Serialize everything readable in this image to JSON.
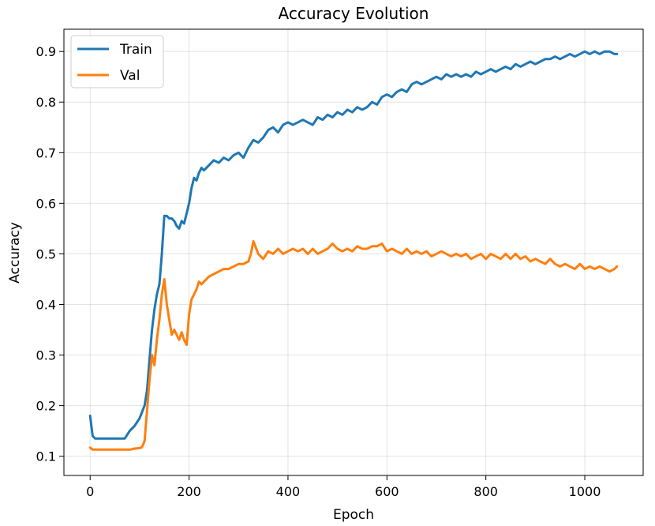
{
  "chart_data": {
    "type": "line",
    "title": "Accuracy Evolution",
    "xlabel": "Epoch",
    "ylabel": "Accuracy",
    "xlim": [
      -53,
      1118
    ],
    "ylim": [
      0.062,
      0.944
    ],
    "xticks": [
      0,
      200,
      400,
      600,
      800,
      1000
    ],
    "yticks": [
      0.1,
      0.2,
      0.3,
      0.4,
      0.5,
      0.6,
      0.7,
      0.8,
      0.9
    ],
    "grid": true,
    "legend_position": "top-left",
    "series": [
      {
        "name": "Train",
        "color": "#1f77b4",
        "x": [
          0,
          5,
          10,
          20,
          30,
          40,
          50,
          60,
          70,
          80,
          90,
          100,
          110,
          115,
          120,
          125,
          130,
          135,
          140,
          145,
          150,
          155,
          160,
          165,
          170,
          175,
          180,
          185,
          190,
          195,
          200,
          205,
          210,
          215,
          220,
          225,
          230,
          240,
          250,
          260,
          270,
          280,
          290,
          300,
          310,
          320,
          330,
          340,
          350,
          360,
          370,
          380,
          390,
          400,
          410,
          420,
          430,
          440,
          450,
          460,
          470,
          480,
          490,
          500,
          510,
          520,
          530,
          540,
          550,
          560,
          570,
          580,
          590,
          600,
          610,
          620,
          630,
          640,
          650,
          660,
          670,
          680,
          690,
          700,
          710,
          720,
          730,
          740,
          750,
          760,
          770,
          780,
          790,
          800,
          810,
          820,
          830,
          840,
          850,
          860,
          870,
          880,
          890,
          900,
          910,
          920,
          930,
          940,
          950,
          960,
          970,
          980,
          990,
          1000,
          1010,
          1020,
          1030,
          1040,
          1050,
          1060,
          1065
        ],
        "values": [
          0.18,
          0.14,
          0.135,
          0.135,
          0.135,
          0.135,
          0.135,
          0.135,
          0.135,
          0.15,
          0.16,
          0.175,
          0.2,
          0.23,
          0.29,
          0.35,
          0.39,
          0.42,
          0.44,
          0.5,
          0.575,
          0.575,
          0.57,
          0.57,
          0.565,
          0.555,
          0.55,
          0.565,
          0.56,
          0.58,
          0.6,
          0.63,
          0.65,
          0.645,
          0.66,
          0.67,
          0.665,
          0.675,
          0.685,
          0.68,
          0.69,
          0.685,
          0.695,
          0.7,
          0.69,
          0.71,
          0.725,
          0.72,
          0.73,
          0.745,
          0.75,
          0.74,
          0.755,
          0.76,
          0.755,
          0.76,
          0.765,
          0.76,
          0.755,
          0.77,
          0.765,
          0.775,
          0.77,
          0.78,
          0.775,
          0.785,
          0.78,
          0.79,
          0.785,
          0.79,
          0.8,
          0.795,
          0.81,
          0.815,
          0.81,
          0.82,
          0.825,
          0.82,
          0.835,
          0.84,
          0.835,
          0.84,
          0.845,
          0.85,
          0.845,
          0.855,
          0.85,
          0.855,
          0.85,
          0.855,
          0.85,
          0.86,
          0.855,
          0.86,
          0.865,
          0.86,
          0.865,
          0.87,
          0.865,
          0.875,
          0.87,
          0.875,
          0.88,
          0.875,
          0.88,
          0.885,
          0.885,
          0.89,
          0.885,
          0.89,
          0.895,
          0.89,
          0.895,
          0.9,
          0.895,
          0.9,
          0.895,
          0.9,
          0.9,
          0.895,
          0.895
        ]
      },
      {
        "name": "Val",
        "color": "#ff7f0e",
        "x": [
          0,
          5,
          10,
          20,
          30,
          40,
          50,
          60,
          70,
          80,
          90,
          100,
          105,
          110,
          115,
          120,
          125,
          130,
          135,
          140,
          145,
          150,
          155,
          160,
          165,
          170,
          175,
          180,
          185,
          190,
          195,
          200,
          205,
          210,
          215,
          220,
          225,
          230,
          240,
          250,
          260,
          270,
          280,
          290,
          300,
          310,
          320,
          325,
          330,
          340,
          350,
          360,
          370,
          380,
          390,
          400,
          410,
          420,
          430,
          440,
          450,
          460,
          470,
          480,
          490,
          500,
          510,
          520,
          530,
          540,
          550,
          560,
          570,
          580,
          590,
          600,
          610,
          620,
          630,
          640,
          650,
          660,
          670,
          680,
          690,
          700,
          710,
          720,
          730,
          740,
          750,
          760,
          770,
          780,
          790,
          800,
          810,
          820,
          830,
          840,
          850,
          860,
          870,
          880,
          890,
          900,
          910,
          920,
          930,
          940,
          950,
          960,
          970,
          980,
          990,
          1000,
          1010,
          1020,
          1030,
          1040,
          1050,
          1060,
          1065
        ],
        "values": [
          0.117,
          0.113,
          0.113,
          0.113,
          0.113,
          0.113,
          0.113,
          0.113,
          0.113,
          0.113,
          0.115,
          0.116,
          0.118,
          0.13,
          0.19,
          0.25,
          0.3,
          0.28,
          0.33,
          0.37,
          0.42,
          0.45,
          0.4,
          0.37,
          0.34,
          0.35,
          0.34,
          0.33,
          0.345,
          0.33,
          0.32,
          0.38,
          0.41,
          0.42,
          0.43,
          0.445,
          0.44,
          0.445,
          0.455,
          0.46,
          0.465,
          0.47,
          0.47,
          0.475,
          0.48,
          0.48,
          0.485,
          0.5,
          0.525,
          0.5,
          0.49,
          0.505,
          0.5,
          0.51,
          0.5,
          0.505,
          0.51,
          0.505,
          0.51,
          0.5,
          0.51,
          0.5,
          0.505,
          0.51,
          0.52,
          0.51,
          0.505,
          0.51,
          0.505,
          0.515,
          0.51,
          0.51,
          0.515,
          0.515,
          0.52,
          0.505,
          0.51,
          0.505,
          0.5,
          0.51,
          0.5,
          0.505,
          0.5,
          0.505,
          0.495,
          0.5,
          0.505,
          0.5,
          0.495,
          0.5,
          0.495,
          0.5,
          0.49,
          0.495,
          0.5,
          0.49,
          0.5,
          0.495,
          0.49,
          0.5,
          0.49,
          0.5,
          0.49,
          0.495,
          0.485,
          0.49,
          0.485,
          0.48,
          0.49,
          0.48,
          0.475,
          0.48,
          0.475,
          0.47,
          0.48,
          0.47,
          0.475,
          0.47,
          0.475,
          0.47,
          0.465,
          0.47,
          0.475
        ]
      }
    ]
  }
}
